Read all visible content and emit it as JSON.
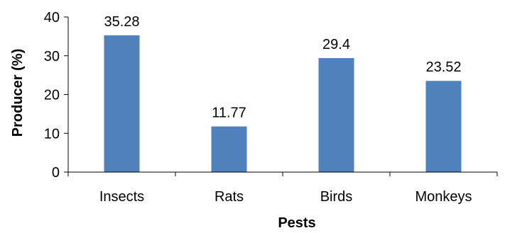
{
  "chart_data": {
    "type": "bar",
    "title": "",
    "xlabel": "Pests",
    "ylabel": "Producer (%)",
    "categories": [
      "Insects",
      "Rats",
      "Birds",
      "Monkeys"
    ],
    "values": [
      35.28,
      11.77,
      29.4,
      23.52
    ],
    "data_labels": [
      "35.28",
      "11.77",
      "29.4",
      "23.52"
    ],
    "ylim": [
      0,
      40
    ],
    "yticks": [
      0,
      10,
      20,
      30,
      40
    ],
    "ytick_labels": [
      "0",
      "10",
      "20",
      "30",
      "40"
    ],
    "grid": false,
    "legend": "none",
    "colors": {
      "bar": "#4f81bd",
      "axis": "#000000",
      "text": "#000000"
    }
  }
}
